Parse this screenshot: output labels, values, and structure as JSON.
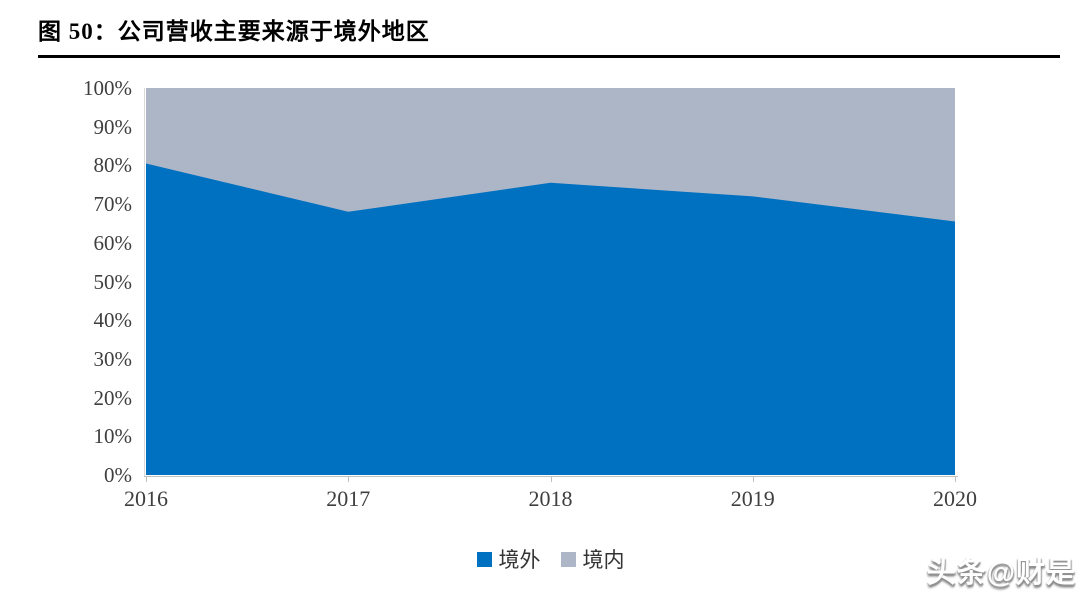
{
  "header": {
    "title": "图 50：公司营收主要来源于境外地区"
  },
  "chart_data": {
    "type": "area",
    "subtype": "stacked-100-percent",
    "title": "公司营收主要来源于境外地区",
    "categories": [
      "2016",
      "2017",
      "2018",
      "2019",
      "2020"
    ],
    "series": [
      {
        "name": "境外",
        "color": "#0070C0",
        "values": [
          80.5,
          68,
          75.5,
          72,
          65.5
        ]
      },
      {
        "name": "境内",
        "color": "#ADB6C7",
        "values": [
          19.5,
          32,
          24.5,
          28,
          34.5
        ]
      }
    ],
    "xlabel": "",
    "ylabel": "",
    "ylim": [
      0,
      100
    ],
    "ytick_step": 10,
    "ytick_labels": [
      "0%",
      "10%",
      "20%",
      "30%",
      "40%",
      "50%",
      "60%",
      "70%",
      "80%",
      "90%",
      "100%"
    ],
    "grid": false,
    "legend_position": "bottom"
  },
  "watermark": "头条@财是",
  "colors": {
    "overseas_blue": "#0070C0",
    "domestic_gray": "#ADB6C7",
    "axis_line": "#BFBFBF",
    "tick_text": "#3F3F3F",
    "title_text": "#000000"
  }
}
